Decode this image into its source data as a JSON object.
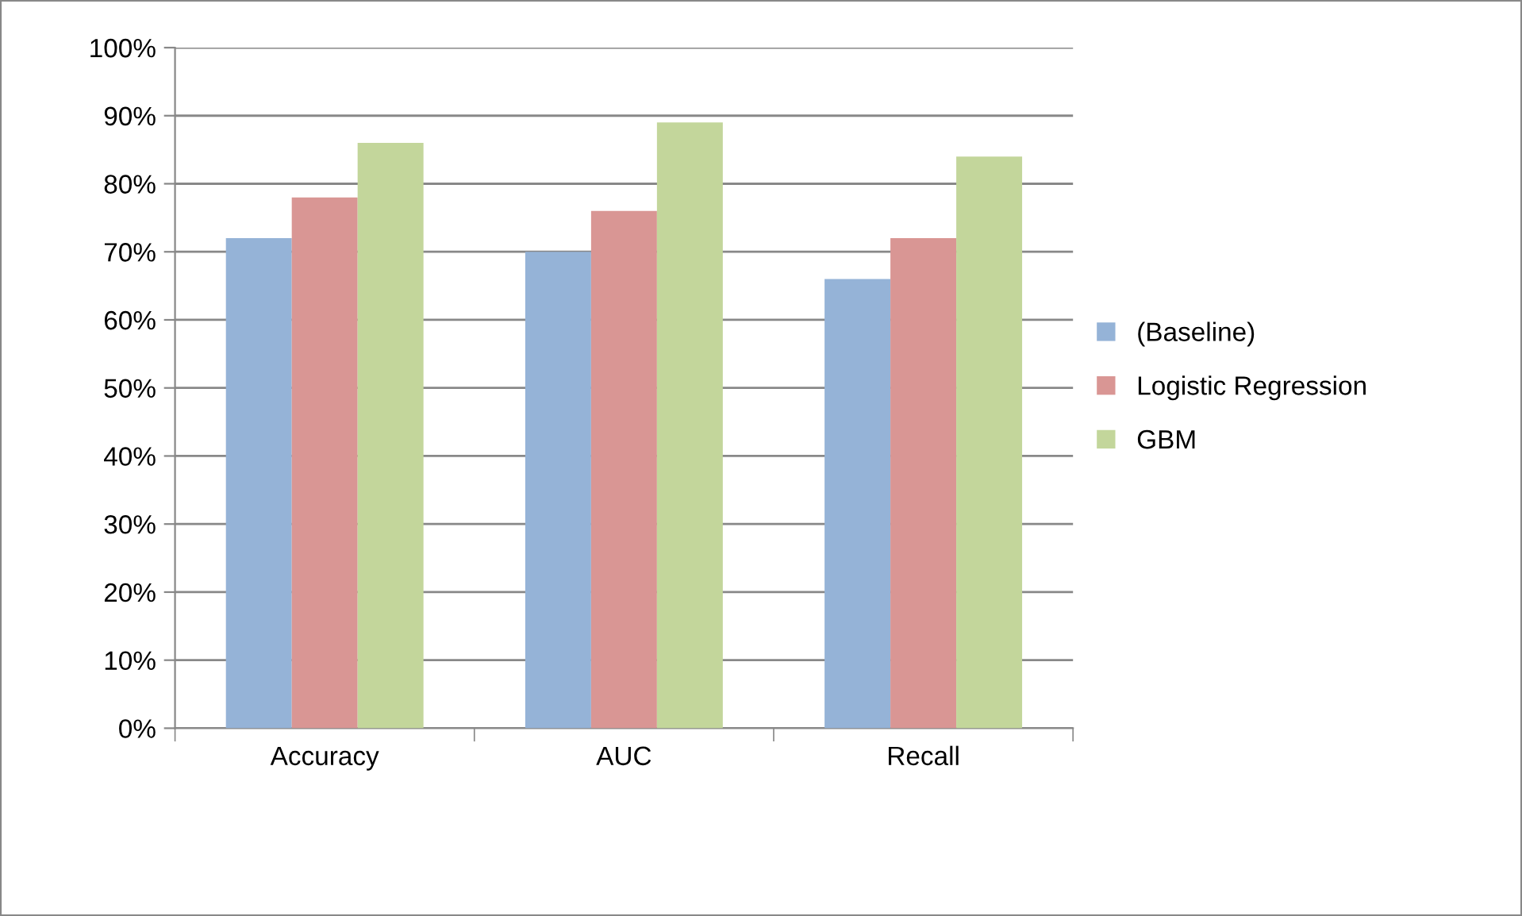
{
  "chart_data": {
    "type": "bar",
    "categories": [
      "Accuracy",
      "AUC",
      "Recall"
    ],
    "series": [
      {
        "name": "(Baseline)",
        "color": "#95b3d7",
        "values": [
          72,
          70,
          66
        ]
      },
      {
        "name": "Logistic Regression",
        "color": "#d99694",
        "values": [
          78,
          76,
          72
        ]
      },
      {
        "name": "GBM",
        "color": "#c3d69b",
        "values": [
          86,
          89,
          84
        ]
      }
    ],
    "ylim": [
      0,
      100
    ],
    "yticks": [
      {
        "value": 0,
        "label": "0%"
      },
      {
        "value": 10,
        "label": "10%"
      },
      {
        "value": 20,
        "label": "20%"
      },
      {
        "value": 30,
        "label": "30%"
      },
      {
        "value": 40,
        "label": "40%"
      },
      {
        "value": 50,
        "label": "50%"
      },
      {
        "value": 60,
        "label": "60%"
      },
      {
        "value": 70,
        "label": "70%"
      },
      {
        "value": 80,
        "label": "80%"
      },
      {
        "value": 90,
        "label": "90%"
      },
      {
        "value": 100,
        "label": "100%"
      }
    ],
    "grid": "y",
    "legend": "right"
  }
}
